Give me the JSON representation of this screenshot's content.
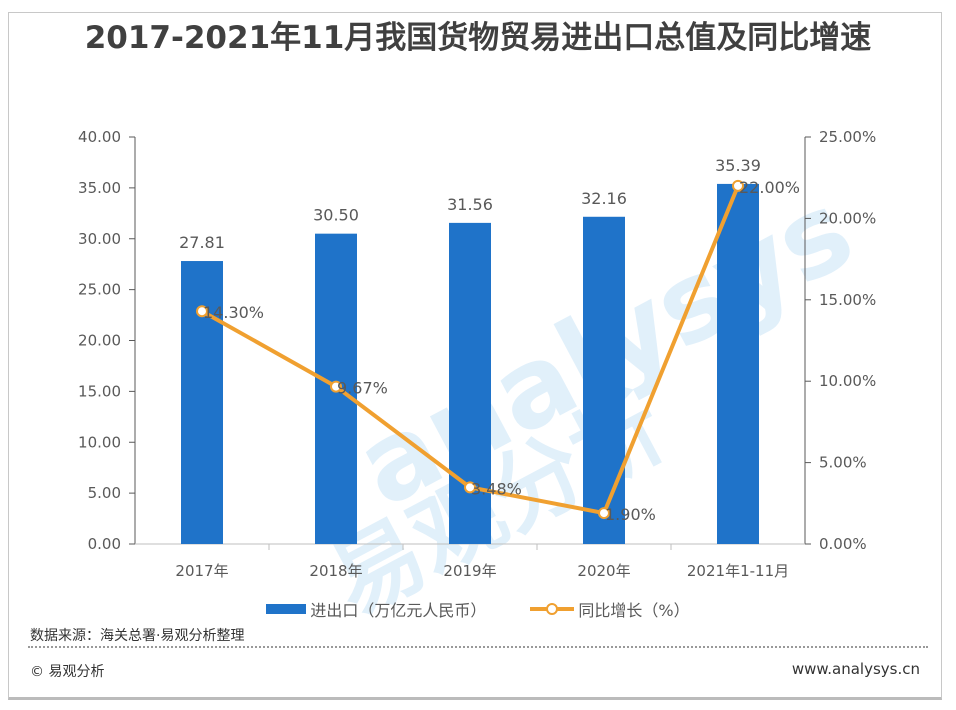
{
  "title": "2017-2021年11月我国货物贸易进出口总值及同比增速",
  "watermark": "analysys 易观分析",
  "source": "数据来源：海关总署·易观分析整理",
  "copyright": "© 易观分析",
  "website": "www.analysys.cn",
  "colors": {
    "bar": "#1f73c9",
    "line": "#f0a030"
  },
  "chart_data": {
    "type": "bar+line",
    "categories": [
      "2017年",
      "2018年",
      "2019年",
      "2020年",
      "2021年1-11月"
    ],
    "series": [
      {
        "name": "进出口（万亿元人民币）",
        "type": "bar",
        "axis": "left",
        "values": [
          27.81,
          30.5,
          31.56,
          32.16,
          35.39
        ],
        "labels": [
          "27.81",
          "30.50",
          "31.56",
          "32.16",
          "35.39"
        ]
      },
      {
        "name": "同比增长（%）",
        "type": "line",
        "axis": "right",
        "values": [
          14.3,
          9.67,
          3.48,
          1.9,
          22.0
        ],
        "labels": [
          "14.30%",
          "9.67%",
          "3.48%",
          "1.90%",
          "22.00%"
        ]
      }
    ],
    "left_axis": {
      "ylim": [
        0,
        40
      ],
      "ticks": [
        "0.00",
        "5.00",
        "10.00",
        "15.00",
        "20.00",
        "25.00",
        "30.00",
        "35.00",
        "40.00"
      ]
    },
    "right_axis": {
      "ylim": [
        0,
        25
      ],
      "ticks": [
        "0.00%",
        "5.00%",
        "10.00%",
        "15.00%",
        "20.00%",
        "25.00%"
      ]
    },
    "legend": "bottom",
    "grid": false
  }
}
